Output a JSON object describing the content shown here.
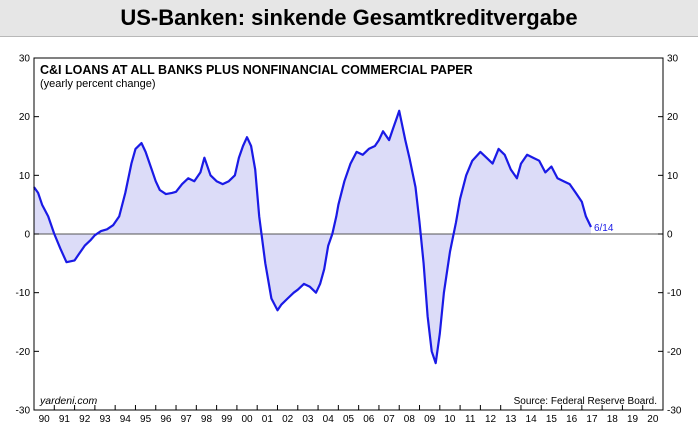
{
  "headline": "US-Banken: sinkende Gesamtkreditvergabe",
  "chart_data": {
    "type": "area",
    "title": "C&I LOANS AT ALL BANKS PLUS NONFINANCIAL COMMERCIAL PAPER",
    "subtitle": "(yearly percent change)",
    "credit": "yardeni.com",
    "source": "Source: Federal Reserve Board.",
    "end_label": "6/14",
    "ylim": [
      -30,
      30
    ],
    "yticks": [
      30,
      20,
      10,
      0,
      -10,
      -20,
      -30
    ],
    "xlim": [
      1990,
      2021
    ],
    "xtick_labels": [
      "90",
      "91",
      "92",
      "93",
      "94",
      "95",
      "96",
      "97",
      "98",
      "99",
      "00",
      "01",
      "02",
      "03",
      "04",
      "05",
      "06",
      "07",
      "08",
      "09",
      "10",
      "11",
      "12",
      "13",
      "14",
      "15",
      "16",
      "17",
      "18",
      "19",
      "20"
    ],
    "grid": false,
    "line_color": "#1a1ae6",
    "fill_color": "#dcdcf8",
    "zero_line_color": "#555555",
    "x": [
      1990.0,
      1990.2,
      1990.4,
      1990.7,
      1991.0,
      1991.3,
      1991.6,
      1992.0,
      1992.2,
      1992.5,
      1992.8,
      1993.0,
      1993.3,
      1993.6,
      1993.9,
      1994.2,
      1994.5,
      1994.8,
      1995.0,
      1995.3,
      1995.5,
      1995.8,
      1996.0,
      1996.2,
      1996.5,
      1996.8,
      1997.0,
      1997.3,
      1997.6,
      1997.9,
      1998.2,
      1998.4,
      1998.7,
      1999.0,
      1999.3,
      1999.6,
      1999.9,
      2000.1,
      2000.3,
      2000.5,
      2000.7,
      2000.9,
      2001.1,
      2001.4,
      2001.7,
      2002.0,
      2002.2,
      2002.5,
      2002.8,
      2003.0,
      2003.3,
      2003.6,
      2003.9,
      2004.1,
      2004.3,
      2004.5,
      2004.7,
      2004.9,
      2005.0,
      2005.3,
      2005.6,
      2005.9,
      2006.2,
      2006.5,
      2006.8,
      2007.0,
      2007.2,
      2007.5,
      2007.7,
      2007.9,
      2008.0,
      2008.3,
      2008.5,
      2008.8,
      2009.0,
      2009.2,
      2009.4,
      2009.6,
      2009.8,
      2010.0,
      2010.2,
      2010.5,
      2010.8,
      2011.0,
      2011.3,
      2011.6,
      2012.0,
      2012.3,
      2012.6,
      2012.9,
      2013.2,
      2013.5,
      2013.8,
      2014.0,
      2014.3,
      2014.6,
      2014.9,
      2015.2,
      2015.5,
      2015.8,
      2016.1,
      2016.4,
      2016.7,
      2017.0,
      2017.2,
      2017.45
    ],
    "y": [
      8.0,
      7.0,
      5.0,
      3.0,
      0.0,
      -2.5,
      -4.8,
      -4.5,
      -3.5,
      -2.0,
      -1.0,
      -0.2,
      0.5,
      0.8,
      1.5,
      3.0,
      7.0,
      12.0,
      14.5,
      15.5,
      14.0,
      11.0,
      9.0,
      7.5,
      6.8,
      7.0,
      7.2,
      8.5,
      9.5,
      9.0,
      10.5,
      13.0,
      10.0,
      9.0,
      8.5,
      9.0,
      10.0,
      13.0,
      15.0,
      16.5,
      15.0,
      11.0,
      3.0,
      -5.0,
      -11.0,
      -13.0,
      -12.0,
      -11.0,
      -10.0,
      -9.5,
      -8.5,
      -9.0,
      -10.0,
      -8.5,
      -6.0,
      -2.0,
      0.0,
      3.0,
      5.0,
      9.0,
      12.0,
      14.0,
      13.5,
      14.5,
      15.0,
      16.0,
      17.5,
      16.0,
      18.0,
      20.0,
      21.0,
      16.0,
      13.0,
      8.0,
      2.0,
      -5.0,
      -14.0,
      -20.0,
      -22.0,
      -17.0,
      -10.0,
      -3.0,
      2.0,
      6.0,
      10.0,
      12.5,
      14.0,
      13.0,
      12.0,
      14.5,
      13.5,
      11.0,
      9.5,
      12.0,
      13.5,
      13.0,
      12.5,
      10.5,
      11.5,
      9.5,
      9.0,
      8.5,
      7.0,
      5.5,
      3.0,
      1.2
    ]
  }
}
